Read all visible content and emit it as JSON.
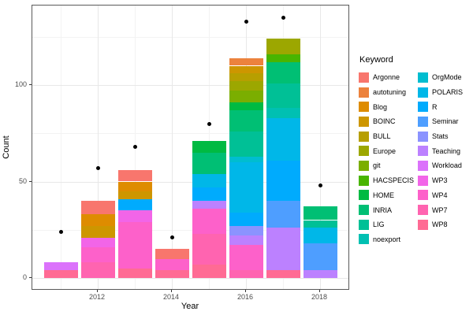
{
  "chart_data": {
    "type": "bar",
    "subtype": "stacked-bars-with-points",
    "title": "",
    "xlabel": "Year",
    "ylabel": "Count",
    "x_ticks": [
      2012,
      2014,
      2016,
      2018
    ],
    "x_minor": [
      2011,
      2013,
      2015,
      2017
    ],
    "y_ticks": [
      0,
      50,
      100
    ],
    "y_minor": [
      25,
      75,
      125
    ],
    "ylim": [
      0,
      141
    ],
    "grid": true,
    "point_color": "#000000",
    "panel_border_color": "#595959",
    "grid_major_color": "#e8e8e8",
    "grid_minor_color": "#f3f3f3",
    "axis_text_color": "#4d4d4d",
    "legend": {
      "title": "Keyword",
      "position": "right",
      "columns": 2,
      "column_split": 12
    },
    "keywords": [
      {
        "name": "Argonne",
        "color": "#F8766D"
      },
      {
        "name": "autotuning",
        "color": "#EC823D"
      },
      {
        "name": "Blog",
        "color": "#DE8C00"
      },
      {
        "name": "BOINC",
        "color": "#CD9600"
      },
      {
        "name": "BULL",
        "color": "#B79F00"
      },
      {
        "name": "Europe",
        "color": "#9CA700"
      },
      {
        "name": "git",
        "color": "#7BAE00"
      },
      {
        "name": "HACSPECIS",
        "color": "#48B500"
      },
      {
        "name": "HOME",
        "color": "#00BA42"
      },
      {
        "name": "INRIA",
        "color": "#00BF74"
      },
      {
        "name": "LIG",
        "color": "#00C096"
      },
      {
        "name": "noexport",
        "color": "#00C0B2"
      },
      {
        "name": "OrgMode",
        "color": "#00BDD0"
      },
      {
        "name": "POLARIS",
        "color": "#00B7E8"
      },
      {
        "name": "R",
        "color": "#00ABFD"
      },
      {
        "name": "Seminar",
        "color": "#4E9EFF"
      },
      {
        "name": "Stats",
        "color": "#8B93FF"
      },
      {
        "name": "Teaching",
        "color": "#BC81FF"
      },
      {
        "name": "Workload",
        "color": "#DB72FB"
      },
      {
        "name": "WP3",
        "color": "#F265E8"
      },
      {
        "name": "WP4",
        "color": "#FD61CA"
      },
      {
        "name": "WP7",
        "color": "#FF64B0"
      },
      {
        "name": "WP8",
        "color": "#FF6B94"
      }
    ],
    "bars": [
      {
        "year": 2011,
        "total": 8,
        "segments": [
          [
            "WP8",
            4
          ],
          [
            "Workload",
            4
          ]
        ]
      },
      {
        "year": 2012,
        "total": 40,
        "segments": [
          [
            "WP7",
            8
          ],
          [
            "WP4",
            8
          ],
          [
            "WP3",
            5
          ],
          [
            "BOINC",
            6
          ],
          [
            "Blog",
            6
          ],
          [
            "Argonne",
            7
          ]
        ]
      },
      {
        "year": 2013,
        "total": 56,
        "segments": [
          [
            "WP8",
            5
          ],
          [
            "WP4",
            24
          ],
          [
            "WP3",
            6
          ],
          [
            "R",
            6
          ],
          [
            "BOINC",
            4
          ],
          [
            "Blog",
            5
          ],
          [
            "Argonne",
            6
          ]
        ]
      },
      {
        "year": 2014,
        "total": 15,
        "segments": [
          [
            "WP8",
            4
          ],
          [
            "WP4",
            6
          ],
          [
            "Argonne",
            5
          ]
        ]
      },
      {
        "year": 2015,
        "total": 71,
        "segments": [
          [
            "WP8",
            7
          ],
          [
            "WP7",
            16
          ],
          [
            "WP4",
            13
          ],
          [
            "Teaching",
            4
          ],
          [
            "R",
            7
          ],
          [
            "POLARIS",
            7
          ],
          [
            "INRIA",
            11
          ],
          [
            "HOME",
            6
          ]
        ]
      },
      {
        "year": 2016,
        "total": 114,
        "segments": [
          [
            "WP7",
            4
          ],
          [
            "WP4",
            13
          ],
          [
            "Teaching",
            5
          ],
          [
            "Stats",
            5
          ],
          [
            "R",
            7
          ],
          [
            "POLARIS",
            26
          ],
          [
            "OrgMode",
            3
          ],
          [
            "LIG",
            13
          ],
          [
            "INRIA",
            11
          ],
          [
            "HOME",
            4
          ],
          [
            "git",
            6
          ],
          [
            "Europe",
            5
          ],
          [
            "BULL",
            4
          ],
          [
            "BOINC",
            4
          ],
          [
            "autotuning",
            4
          ]
        ]
      },
      {
        "year": 2017,
        "total": 124,
        "segments": [
          [
            "WP8",
            4
          ],
          [
            "Teaching",
            22
          ],
          [
            "Seminar",
            14
          ],
          [
            "R",
            21
          ],
          [
            "POLARIS",
            22
          ],
          [
            "noexport",
            5
          ],
          [
            "LIG",
            13
          ],
          [
            "INRIA",
            11
          ],
          [
            "HACSPECIS",
            4
          ],
          [
            "Europe",
            8
          ]
        ]
      },
      {
        "year": 2018,
        "total": 37,
        "segments": [
          [
            "Teaching",
            4
          ],
          [
            "Seminar",
            14
          ],
          [
            "POLARIS",
            8
          ],
          [
            "LIG",
            4
          ],
          [
            "INRIA",
            7
          ]
        ]
      }
    ],
    "points": [
      {
        "year": 2011,
        "count": 24
      },
      {
        "year": 2012,
        "count": 57
      },
      {
        "year": 2013,
        "count": 68
      },
      {
        "year": 2014,
        "count": 21
      },
      {
        "year": 2015,
        "count": 80
      },
      {
        "year": 2016,
        "count": 133
      },
      {
        "year": 2017,
        "count": 135
      },
      {
        "year": 2018,
        "count": 48
      }
    ]
  }
}
